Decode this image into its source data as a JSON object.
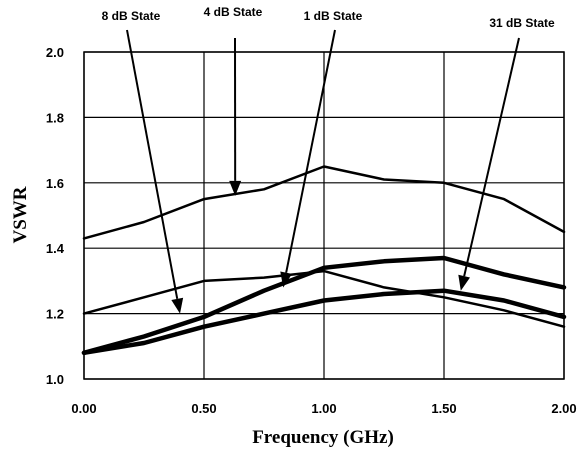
{
  "chart_data": {
    "type": "line",
    "title": "",
    "xlabel": "Frequency (GHz)",
    "ylabel": "VSWR",
    "xlim": [
      0,
      2
    ],
    "ylim": [
      1.0,
      2.0
    ],
    "x_ticks": [
      0,
      0.5,
      1.0,
      1.5,
      2.0
    ],
    "x_tick_labels": [
      "0.00",
      "0.50",
      "1.00",
      "1.50",
      "2.00"
    ],
    "y_ticks": [
      1.0,
      1.2,
      1.4,
      1.6,
      1.8,
      2.0
    ],
    "y_tick_labels": [
      "1.0",
      "1.2",
      "1.4",
      "1.6",
      "1.8",
      "2.0"
    ],
    "grid": true,
    "x": [
      0,
      0.25,
      0.5,
      0.75,
      1.0,
      1.25,
      1.5,
      1.75,
      2.0
    ],
    "series": [
      {
        "name": "4 dB State",
        "values": [
          1.43,
          1.48,
          1.55,
          1.58,
          1.65,
          1.61,
          1.6,
          1.55,
          1.45
        ],
        "color": "#000000"
      },
      {
        "name": "8 dB State",
        "values": [
          1.2,
          1.25,
          1.3,
          1.31,
          1.33,
          1.28,
          1.25,
          1.21,
          1.16
        ],
        "color": "#000000"
      },
      {
        "name": "1 dB State",
        "values": [
          1.08,
          1.13,
          1.19,
          1.27,
          1.34,
          1.36,
          1.37,
          1.32,
          1.28
        ],
        "color": "#000000"
      },
      {
        "name": "31 dB State",
        "values": [
          1.08,
          1.11,
          1.16,
          1.2,
          1.24,
          1.26,
          1.27,
          1.24,
          1.19
        ],
        "color": "#000000"
      }
    ],
    "annotations": [
      {
        "text": "8 dB State",
        "target_series": 1,
        "target": [
          0.4,
          1.2
        ]
      },
      {
        "text": "4 dB State",
        "target_series": 0,
        "target": [
          0.63,
          1.56
        ]
      },
      {
        "text": "1 dB State",
        "target_series": 2,
        "target": [
          0.83,
          1.28
        ]
      },
      {
        "text": "31 dB State",
        "target_series": 3,
        "target": [
          1.57,
          1.27
        ]
      }
    ]
  }
}
